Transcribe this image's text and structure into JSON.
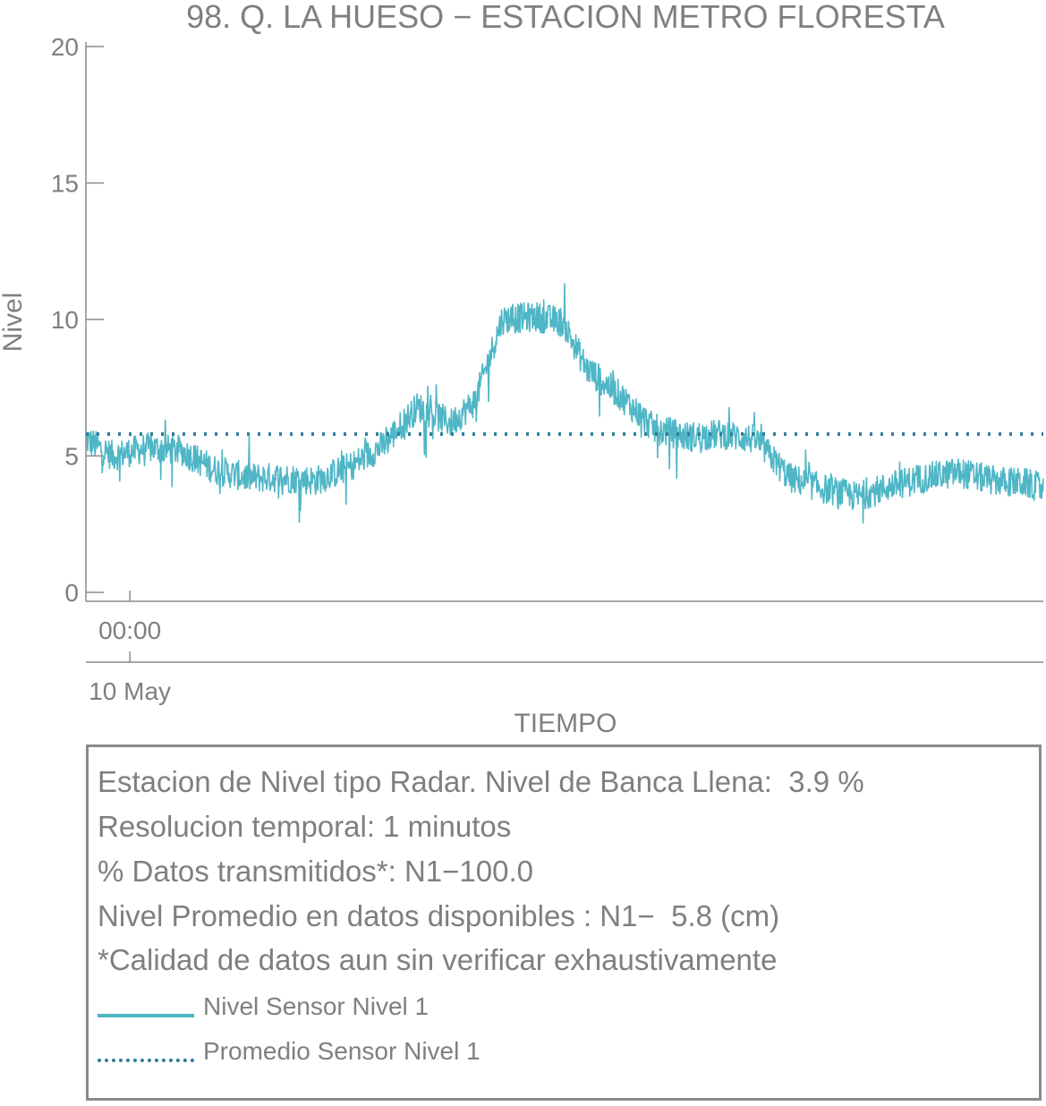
{
  "chart_data": {
    "type": "line",
    "title": "98. Q. LA HUESO − ESTACION METRO FLORESTA",
    "xlabel": "TIEMPO",
    "ylabel": "Nivel",
    "ylim": [
      0,
      20
    ],
    "yticks": [
      "0",
      "5",
      "10",
      "15",
      "20"
    ],
    "x_ticks": [
      {
        "time": "00:00",
        "date": "10 May"
      }
    ],
    "x_range_hours": [
      -1.3,
      27
    ],
    "grid": false,
    "series": [
      {
        "name": "Nivel Sensor Nivel 1",
        "color": "#4fb6c6",
        "style": "solid",
        "x_hours": [
          -1.3,
          -0.5,
          0.5,
          1.5,
          2.5,
          3.5,
          4.5,
          5.5,
          6.5,
          7.5,
          8.5,
          9.5,
          10.2,
          11,
          12,
          12.8,
          13.5,
          14.5,
          15.5,
          16.5,
          17.5,
          18.5,
          19.5,
          20.5,
          21.5,
          22.5,
          23.5,
          24.5,
          25.5,
          26.5,
          27
        ],
        "values": [
          5.6,
          5.0,
          5.3,
          5.2,
          4.5,
          4.2,
          4.2,
          4.1,
          4.6,
          5.4,
          6.8,
          6.2,
          7.0,
          10.0,
          10.1,
          9.9,
          8.2,
          7.2,
          6.0,
          5.7,
          5.8,
          5.6,
          4.2,
          3.8,
          3.5,
          3.9,
          4.2,
          4.4,
          4.1,
          4.0,
          3.8
        ]
      },
      {
        "name": "Promedio Sensor Nivel 1",
        "color": "#2f7d99",
        "style": "dotted",
        "constant": 5.8
      }
    ]
  },
  "info": {
    "line1": "Estacion de Nivel tipo Radar. Nivel de Banca Llena:  3.9 %",
    "line2": "Resolucion temporal: 1 minutos",
    "line3": "% Datos transmitidos*: N1−100.0",
    "line4": "Nivel Promedio en datos disponibles : N1−  5.8 (cm)",
    "line5": "*Calidad de datos aun sin verificar exhaustivamente"
  },
  "legend": {
    "items": [
      {
        "label": "Nivel Sensor Nivel 1"
      },
      {
        "label": "Promedio Sensor Nivel 1"
      }
    ]
  }
}
